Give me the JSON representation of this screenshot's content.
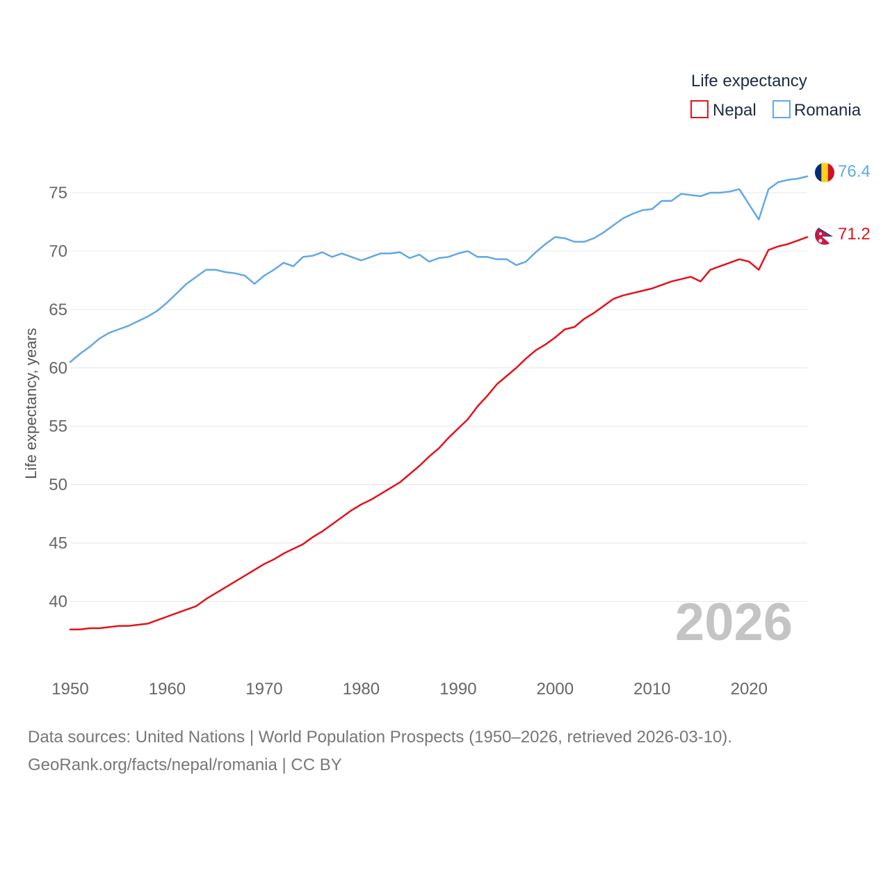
{
  "legend": {
    "title": "Life expectancy",
    "items": [
      "Nepal",
      "Romania"
    ]
  },
  "colors": {
    "nepal": "#e3121a",
    "romania": "#62a8e5",
    "grid": "#e6e6e6",
    "axis_text": "#666666"
  },
  "watermark_year": "2026",
  "end_labels": {
    "nepal": "71.2",
    "romania": "76.4"
  },
  "source": {
    "line1": "Data sources: United Nations | World Population Prospects (1950–2026, retrieved 2026-03-10).",
    "line2": "GeoRank.org/facts/nepal/romania | CC BY"
  },
  "chart_data": {
    "type": "line",
    "title": "Life expectancy",
    "xlabel": "",
    "ylabel": "Life expectancy, years",
    "x_start": 1950,
    "x_end": 2026,
    "xlim": [
      1950,
      2026
    ],
    "ylim": [
      35.2,
      77.8
    ],
    "x_ticks": [
      1950,
      1960,
      1970,
      1980,
      1990,
      2000,
      2010,
      2020
    ],
    "y_ticks": [
      40,
      45,
      50,
      55,
      60,
      65,
      70,
      75
    ],
    "grid": true,
    "legend_position": "top-right",
    "series": [
      {
        "name": "Nepal",
        "color": "#e3121a",
        "values": [
          37.6,
          37.6,
          37.7,
          37.7,
          37.8,
          37.9,
          37.9,
          38.0,
          38.1,
          38.4,
          38.7,
          39.0,
          39.3,
          39.6,
          40.2,
          40.7,
          41.2,
          41.7,
          42.2,
          42.7,
          43.2,
          43.6,
          44.1,
          44.5,
          44.9,
          45.5,
          46.0,
          46.6,
          47.2,
          47.8,
          48.3,
          48.7,
          49.2,
          49.7,
          50.2,
          50.9,
          51.6,
          52.4,
          53.1,
          54.0,
          54.8,
          55.6,
          56.7,
          57.6,
          58.6,
          59.3,
          60.0,
          60.8,
          61.5,
          62.0,
          62.6,
          63.3,
          63.5,
          64.2,
          64.7,
          65.3,
          65.9,
          66.2,
          66.4,
          66.6,
          66.8,
          67.1,
          67.4,
          67.6,
          67.8,
          67.4,
          68.4,
          68.7,
          69.0,
          69.3,
          69.1,
          68.4,
          70.1,
          70.4,
          70.6,
          70.9,
          71.2
        ]
      },
      {
        "name": "Romania",
        "color": "#62a8e5",
        "values": [
          60.5,
          61.2,
          61.8,
          62.5,
          63.0,
          63.3,
          63.6,
          64.0,
          64.4,
          64.9,
          65.6,
          66.4,
          67.2,
          67.8,
          68.4,
          68.4,
          68.2,
          68.1,
          67.9,
          67.2,
          67.9,
          68.4,
          69.0,
          68.7,
          69.5,
          69.6,
          69.9,
          69.5,
          69.8,
          69.5,
          69.2,
          69.5,
          69.8,
          69.8,
          69.9,
          69.4,
          69.7,
          69.1,
          69.4,
          69.5,
          69.8,
          70.0,
          69.5,
          69.5,
          69.3,
          69.3,
          68.8,
          69.1,
          69.9,
          70.6,
          71.2,
          71.1,
          70.8,
          70.8,
          71.1,
          71.6,
          72.2,
          72.8,
          73.2,
          73.5,
          73.6,
          74.3,
          74.3,
          74.9,
          74.8,
          74.7,
          75.0,
          75.0,
          75.1,
          75.3,
          74.0,
          72.7,
          75.3,
          75.9,
          76.1,
          76.2,
          76.4
        ]
      }
    ]
  }
}
